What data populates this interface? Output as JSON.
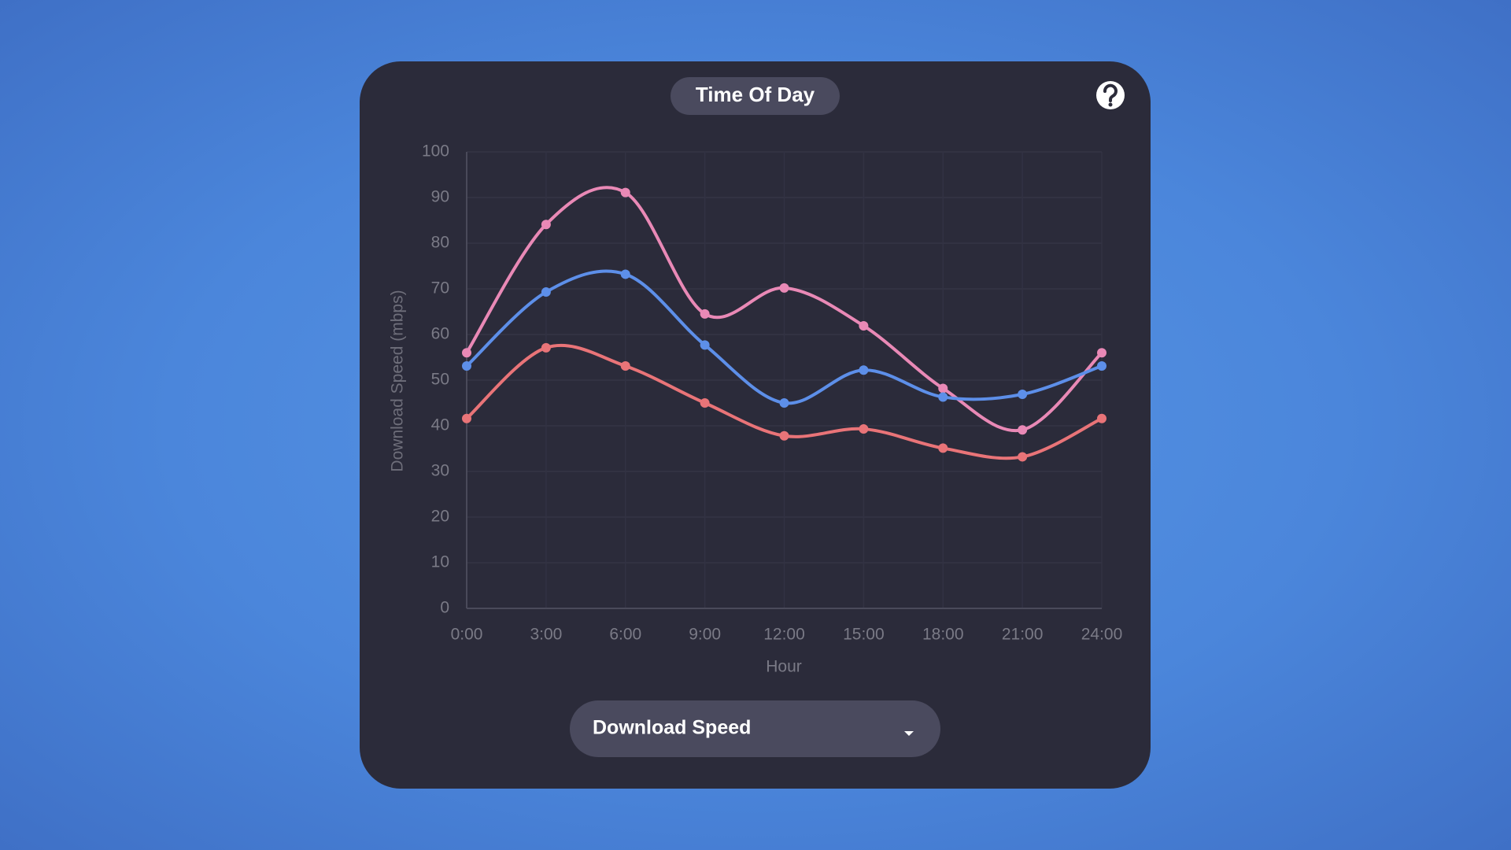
{
  "header": {
    "title": "Time Of Day"
  },
  "chart_data": {
    "type": "line",
    "y_label": "Download Speed (mbps)",
    "x_label": "Hour",
    "categories": [
      "0:00",
      "3:00",
      "6:00",
      "9:00",
      "12:00",
      "15:00",
      "18:00",
      "21:00",
      "24:00"
    ],
    "series": [
      {
        "color": "#e989b6",
        "values": [
          56,
          84.1,
          91.1,
          64.5,
          70.2,
          61.9,
          48.2,
          39.1,
          56
        ]
      },
      {
        "color": "#5d8fe9",
        "values": [
          53.1,
          69.3,
          73.2,
          57.7,
          45,
          52.2,
          46.3,
          46.9,
          53.1
        ]
      },
      {
        "color": "#e97478",
        "values": [
          41.6,
          57.1,
          53.1,
          45,
          37.8,
          39.3,
          35.1,
          33.2,
          41.6
        ]
      }
    ],
    "ylim": [
      0,
      100
    ],
    "yticks": [
      0,
      10,
      20,
      30,
      40,
      50,
      60,
      70,
      80,
      90,
      100
    ],
    "grid": true
  },
  "dropdown": {
    "selected": "Download Speed"
  }
}
